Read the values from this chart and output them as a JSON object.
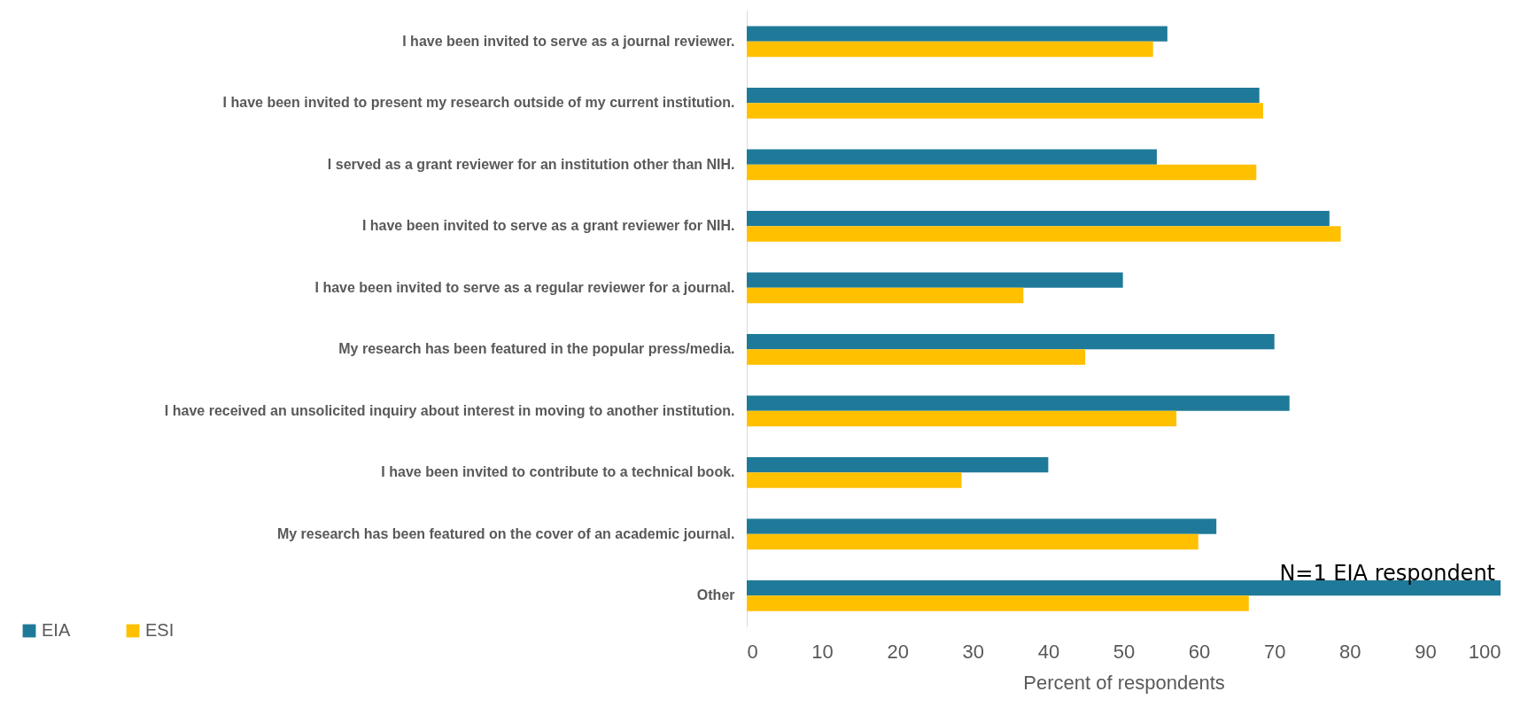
{
  "chart_data": {
    "type": "bar",
    "orientation": "horizontal",
    "xlabel": "Percent of respondents",
    "categories": [
      "I have been invited to serve as a journal reviewer.",
      "I have been invited to present my research outside of my current institution.",
      "I served as a grant reviewer for an institution other than NIH.",
      "I have been invited to serve as a grant reviewer for NIH.",
      "I have been invited to serve as a regular reviewer for a journal.",
      "My research has been featured in the popular press/media.",
      "I have received an unsolicited inquiry about interest in moving to another institution.",
      "I have been invited to contribute to a technical book.",
      "My research has been featured on the cover of an academic journal.",
      "Other"
    ],
    "series": [
      {
        "name": "EIA",
        "color": "#1f7a99",
        "values": [
          55.8,
          68.0,
          54.4,
          77.3,
          49.9,
          70.0,
          72.0,
          40.0,
          62.3,
          100
        ]
      },
      {
        "name": "ESI",
        "color": "#ffc000",
        "values": [
          53.9,
          68.5,
          67.6,
          78.8,
          36.7,
          44.9,
          57.0,
          28.5,
          59.9,
          66.6
        ]
      }
    ],
    "xlim": [
      0,
      100
    ],
    "xticks": [
      0,
      10,
      20,
      30,
      40,
      50,
      60,
      70,
      80,
      90,
      100
    ],
    "annotations": [
      {
        "text": "N=1 EIA respondent",
        "x": 100,
        "y": "Other"
      }
    ],
    "grid": false,
    "legend": "bottom left"
  }
}
